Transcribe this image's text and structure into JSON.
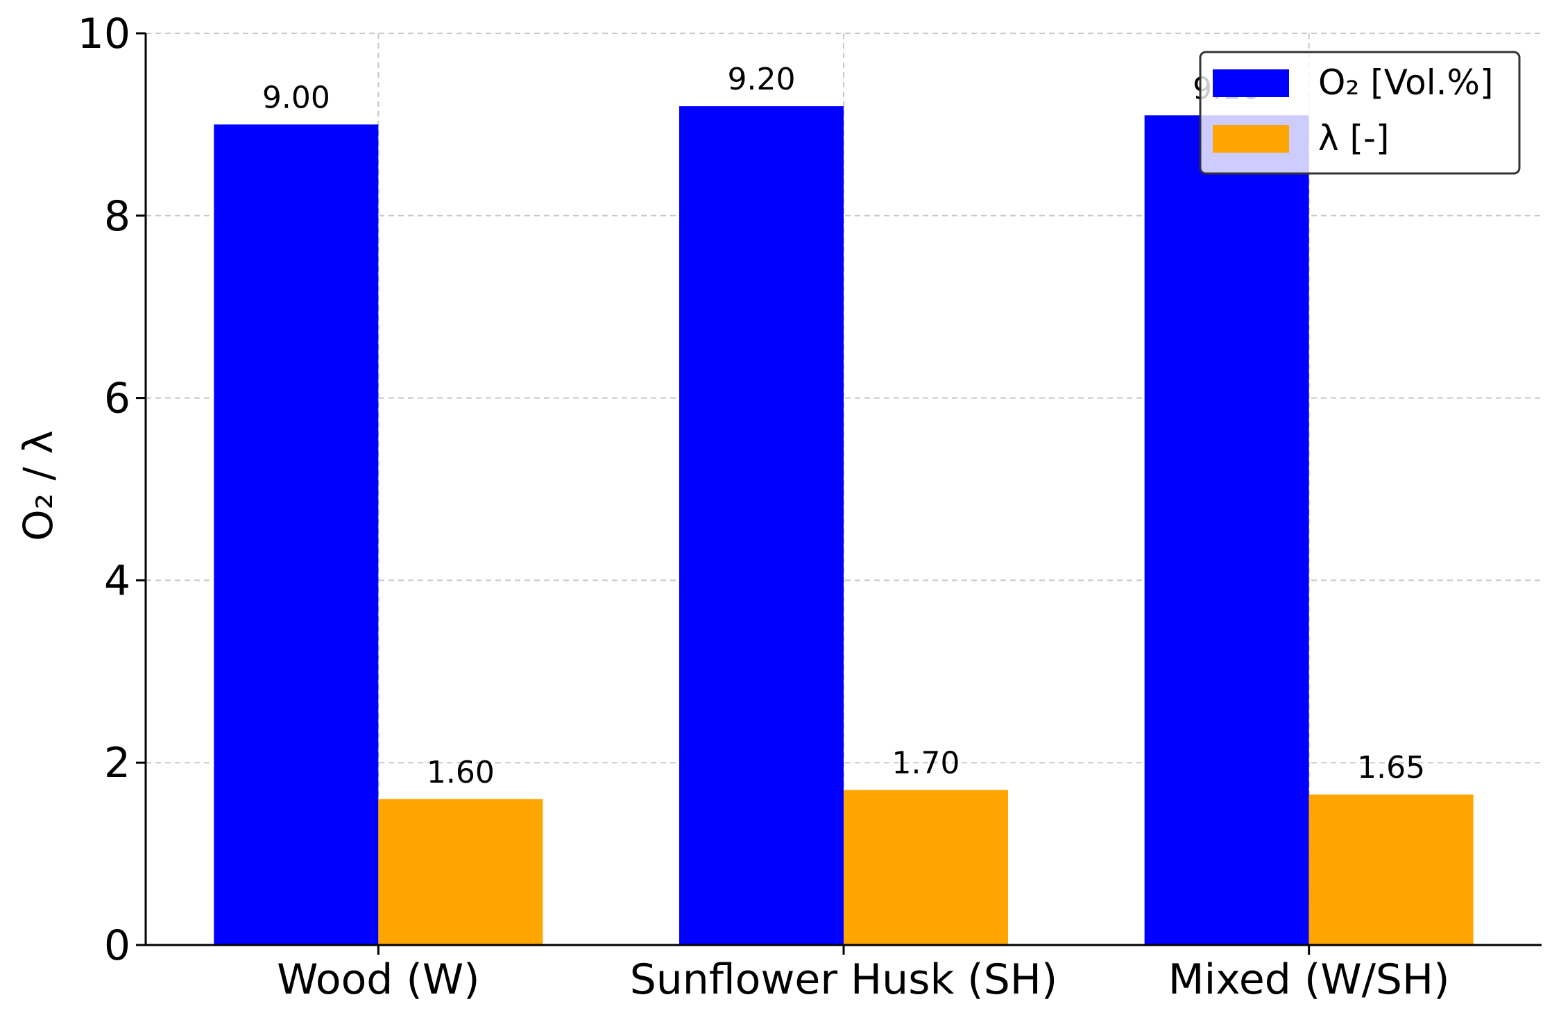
{
  "chart_data": {
    "type": "bar",
    "categories": [
      "Wood (W)",
      "Sunflower Husk (SH)",
      "Mixed (W/SH)"
    ],
    "series": [
      {
        "name": "O₂ [Vol.%]",
        "values": [
          9.0,
          9.2,
          9.1
        ],
        "color": "#0000ff",
        "labels": [
          "9.00",
          "9.20",
          "9.10"
        ]
      },
      {
        "name": "λ [-]",
        "values": [
          1.6,
          1.7,
          1.65
        ],
        "color": "#ffa500",
        "labels": [
          "1.60",
          "1.70",
          "1.65"
        ]
      }
    ],
    "title": "",
    "xlabel": "",
    "ylabel": "O₂ / λ",
    "ylim": [
      0,
      10
    ],
    "yticks": [
      "0",
      "2",
      "4",
      "6",
      "8",
      "10"
    ],
    "grid": true,
    "legend_position": "top-right"
  }
}
